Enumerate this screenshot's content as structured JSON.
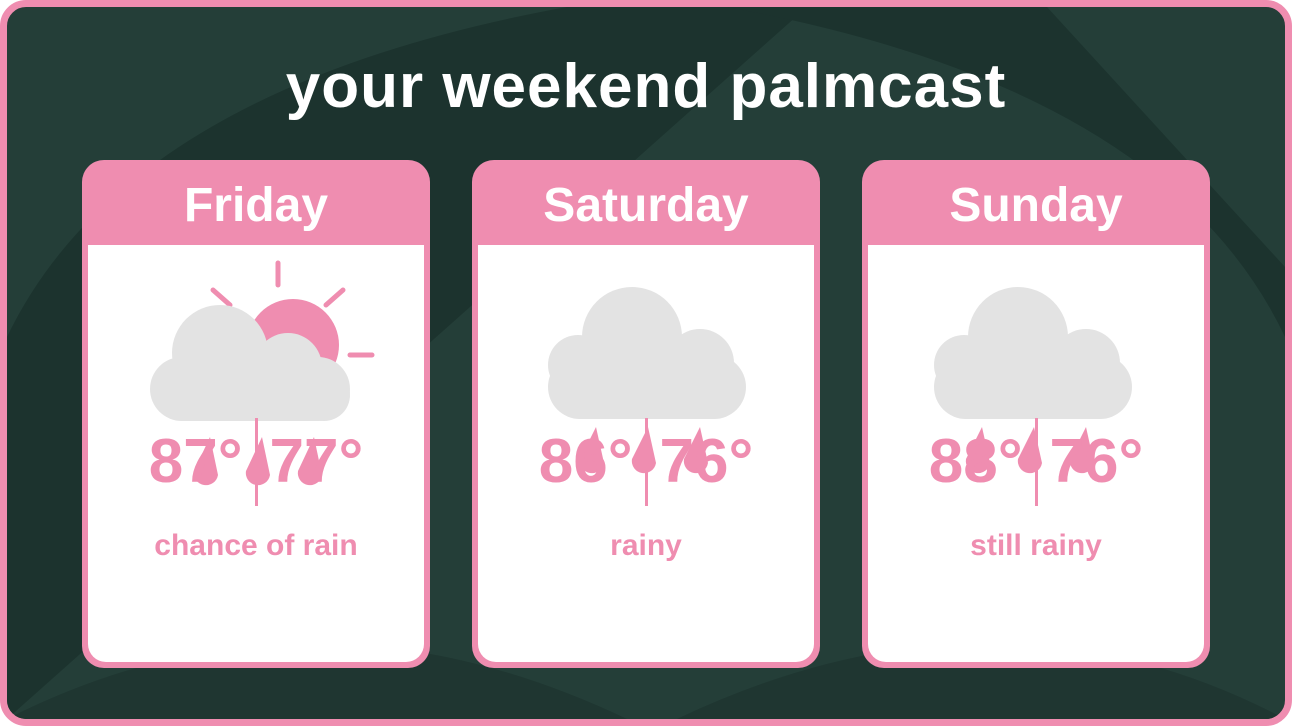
{
  "title": "your weekend palmcast",
  "colors": {
    "background": "#243e38",
    "accent": "#ef8db0",
    "cloud": "#e3e3e3",
    "text": "#ffffff"
  },
  "days": [
    {
      "name": "Friday",
      "high": "87°",
      "low": "77°",
      "description": "chance of rain",
      "icon": "sun-cloud-rain-icon"
    },
    {
      "name": "Saturday",
      "high": "86°",
      "low": "76°",
      "description": "rainy",
      "icon": "cloud-rain-icon"
    },
    {
      "name": "Sunday",
      "high": "88°",
      "low": "76°",
      "description": "still rainy",
      "icon": "cloud-rain-icon"
    }
  ]
}
